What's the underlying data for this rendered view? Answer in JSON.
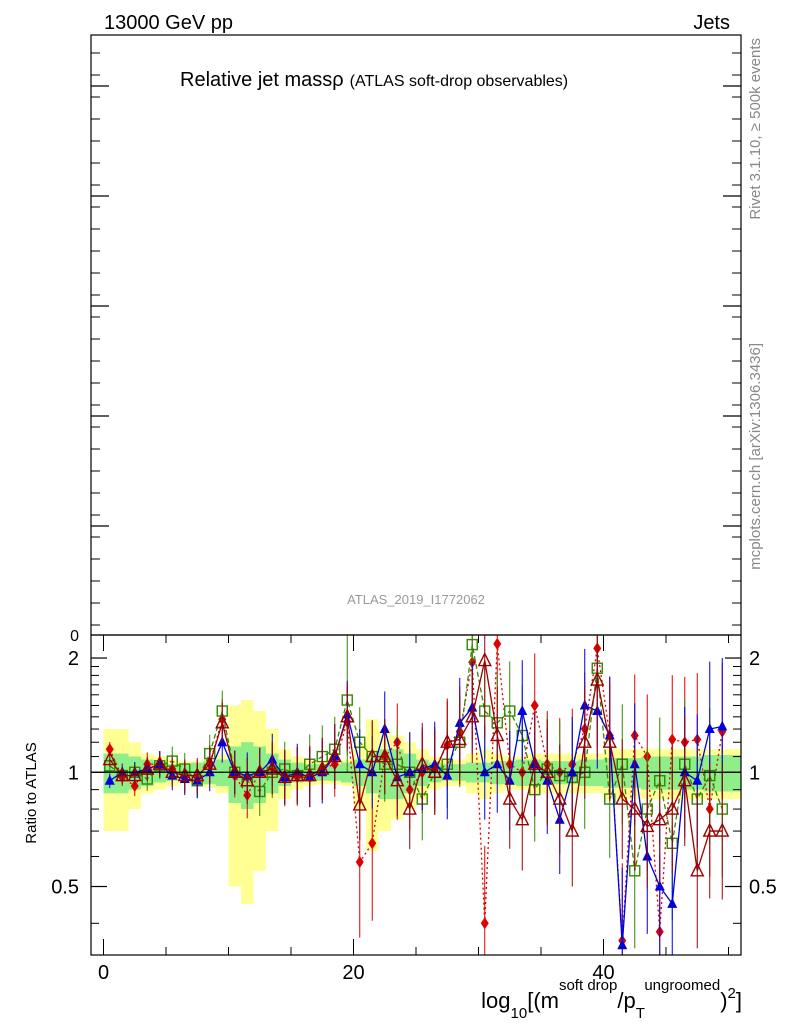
{
  "header": {
    "left_label": "13000 GeV pp",
    "right_label": "Jets"
  },
  "chart_data": {
    "type": "line",
    "title_main": "Relative jet mass",
    "title_symbol": "ρ",
    "title_sub": "(ATLAS soft-drop observables)",
    "analysis_id": "ATLAS_2019_I1772062",
    "side_label_top": "Rivet 3.1.10, ≥ 500k events",
    "side_label_bottom": "mcplots.cern.ch [arXiv:1306.3436]",
    "main_panel": {
      "ytick_zero": "0"
    },
    "ratio_panel": {
      "ylabel": "Ratio to ATLAS",
      "ylim": [
        0.33,
        2.3
      ],
      "yticks": [
        0.5,
        1,
        2
      ],
      "ytick_labels": [
        "0.5",
        "1",
        "2"
      ],
      "xlim": [
        -1,
        51
      ],
      "xticks": [
        0,
        20,
        40
      ],
      "xtick_labels": [
        "0",
        "20",
        "40"
      ],
      "xlabel": {
        "prefix": "log",
        "sub": "10",
        "open": "[(m",
        "sup_num": "soft drop",
        "mid": "/p",
        "sub_den": "T",
        "sup_den": "ungroomed",
        "close": ")",
        "power": "2",
        "end": "]"
      },
      "band_inner_half": [
        0.12,
        0.12,
        0.1,
        0.08,
        0.06,
        0.05,
        0.05,
        0.06,
        0.07,
        0.08,
        0.17,
        0.2,
        0.17,
        0.12,
        0.08,
        0.06,
        0.05,
        0.05,
        0.05,
        0.06,
        0.08,
        0.12,
        0.15,
        0.15,
        0.12,
        0.08,
        0.06,
        0.05,
        0.05,
        0.06,
        0.06,
        0.07,
        0.07,
        0.08,
        0.08,
        0.07,
        0.07,
        0.07,
        0.08,
        0.08,
        0.09,
        0.09,
        0.09,
        0.1,
        0.1,
        0.1,
        0.1,
        0.1,
        0.11,
        0.11,
        0.11
      ],
      "band_outer_half": [
        0.3,
        0.3,
        0.2,
        0.12,
        0.1,
        0.08,
        0.07,
        0.07,
        0.09,
        0.12,
        0.5,
        0.55,
        0.45,
        0.3,
        0.15,
        0.1,
        0.08,
        0.07,
        0.07,
        0.08,
        0.2,
        0.38,
        0.3,
        0.25,
        0.2,
        0.15,
        0.1,
        0.08,
        0.08,
        0.12,
        0.15,
        0.12,
        0.1,
        0.1,
        0.12,
        0.12,
        0.12,
        0.12,
        0.12,
        0.12,
        0.15,
        0.15,
        0.15,
        0.15,
        0.15,
        0.15,
        0.15,
        0.15,
        0.15,
        0.15,
        0.15
      ],
      "series": [
        {
          "name": "red-diamond",
          "color": "#e00000",
          "marker": "diamond",
          "line": "dotted",
          "x": [
            0.5,
            1.5,
            2.5,
            3.5,
            4.5,
            5.5,
            6.5,
            7.5,
            8.5,
            9.5,
            10.5,
            11.5,
            12.5,
            13.5,
            14.5,
            15.5,
            16.5,
            17.5,
            18.5,
            19.5,
            20.5,
            21.5,
            22.5,
            23.5,
            24.5,
            25.5,
            26.5,
            27.5,
            28.5,
            29.5,
            30.5,
            31.5,
            32.5,
            33.5,
            34.5,
            35.5,
            36.5,
            37.5,
            38.5,
            39.5,
            40.5,
            41.5,
            42.5,
            43.5,
            44.5,
            45.5,
            46.5,
            47.5,
            48.5,
            49.5
          ],
          "values": [
            1.15,
            0.97,
            0.92,
            1.05,
            1.05,
            1.02,
            0.97,
            0.97,
            1.05,
            1.38,
            0.98,
            0.87,
            1.0,
            1.03,
            0.96,
            0.97,
            0.97,
            1.02,
            1.05,
            1.36,
            0.58,
            0.65,
            1.1,
            1.2,
            0.9,
            1.0,
            1.02,
            1.18,
            1.28,
            1.95,
            0.4,
            2.18,
            1.05,
            1.0,
            1.5,
            1.05,
            1.0,
            1.05,
            1.3,
            2.12,
            1.25,
            0.36,
            1.25,
            1.1,
            0.38,
            1.22,
            1.2,
            1.22,
            0.8,
            1.28
          ]
        },
        {
          "name": "green-square",
          "color": "#338800",
          "marker": "square",
          "line": "dashed",
          "x": [
            0.5,
            1.5,
            2.5,
            3.5,
            4.5,
            5.5,
            6.5,
            7.5,
            8.5,
            9.5,
            10.5,
            11.5,
            12.5,
            13.5,
            14.5,
            15.5,
            16.5,
            17.5,
            18.5,
            19.5,
            20.5,
            21.5,
            22.5,
            23.5,
            24.5,
            25.5,
            26.5,
            27.5,
            28.5,
            29.5,
            30.5,
            31.5,
            32.5,
            33.5,
            34.5,
            35.5,
            36.5,
            37.5,
            38.5,
            39.5,
            40.5,
            41.5,
            42.5,
            43.5,
            44.5,
            45.5,
            46.5,
            47.5,
            48.5,
            49.5
          ],
          "values": [
            1.04,
            0.98,
            1.0,
            0.96,
            1.04,
            1.07,
            1.02,
            0.95,
            1.12,
            1.45,
            1.0,
            0.95,
            0.89,
            1.0,
            1.02,
            0.98,
            1.05,
            1.1,
            1.15,
            1.55,
            1.2,
            1.1,
            1.05,
            1.05,
            1.0,
            0.85,
            1.0,
            1.05,
            1.2,
            2.17,
            1.45,
            1.35,
            1.45,
            1.25,
            0.9,
            1.02,
            0.98,
            0.97,
            1.0,
            1.88,
            0.85,
            1.05,
            0.55,
            0.8,
            0.95,
            0.65,
            1.05,
            0.85,
            0.98,
            0.8
          ]
        },
        {
          "name": "blue-triangle",
          "color": "#0000dd",
          "marker": "triangle",
          "line": "solid",
          "x": [
            0.5,
            1.5,
            2.5,
            3.5,
            4.5,
            5.5,
            6.5,
            7.5,
            8.5,
            9.5,
            10.5,
            11.5,
            12.5,
            13.5,
            14.5,
            15.5,
            16.5,
            17.5,
            18.5,
            19.5,
            20.5,
            21.5,
            22.5,
            23.5,
            24.5,
            25.5,
            26.5,
            27.5,
            28.5,
            29.5,
            30.5,
            31.5,
            32.5,
            33.5,
            34.5,
            35.5,
            36.5,
            37.5,
            38.5,
            39.5,
            40.5,
            41.5,
            42.5,
            43.5,
            44.5,
            45.5,
            46.5,
            47.5,
            48.5,
            49.5
          ],
          "values": [
            0.95,
            1.0,
            1.0,
            1.02,
            1.05,
            0.98,
            0.96,
            0.95,
            1.0,
            1.2,
            1.0,
            0.98,
            1.0,
            1.08,
            0.97,
            1.0,
            0.97,
            1.0,
            1.1,
            1.42,
            1.05,
            1.0,
            1.3,
            0.97,
            1.0,
            1.02,
            1.05,
            0.98,
            1.35,
            1.48,
            1.0,
            1.05,
            0.95,
            1.45,
            1.05,
            0.95,
            0.75,
            1.0,
            1.5,
            1.45,
            1.25,
            0.35,
            1.05,
            0.6,
            0.5,
            0.45,
            1.0,
            0.95,
            1.3,
            1.32
          ]
        },
        {
          "name": "darkred-triangle-open",
          "color": "#990000",
          "marker": "triangle-open",
          "line": "solid",
          "x": [
            0.5,
            1.5,
            2.5,
            3.5,
            4.5,
            5.5,
            6.5,
            7.5,
            8.5,
            9.5,
            10.5,
            11.5,
            12.5,
            13.5,
            14.5,
            15.5,
            16.5,
            17.5,
            18.5,
            19.5,
            20.5,
            21.5,
            22.5,
            23.5,
            24.5,
            25.5,
            26.5,
            27.5,
            28.5,
            29.5,
            30.5,
            31.5,
            32.5,
            33.5,
            34.5,
            35.5,
            36.5,
            37.5,
            38.5,
            39.5,
            40.5,
            41.5,
            42.5,
            43.5,
            44.5,
            45.5,
            46.5,
            47.5,
            48.5,
            49.5
          ],
          "values": [
            1.08,
            0.98,
            0.98,
            1.02,
            1.05,
            1.0,
            0.98,
            0.98,
            1.05,
            1.35,
            1.0,
            0.95,
            1.0,
            1.02,
            0.97,
            0.98,
            0.98,
            1.02,
            1.1,
            1.4,
            0.82,
            1.1,
            1.1,
            0.95,
            0.8,
            1.05,
            1.0,
            1.2,
            1.22,
            1.4,
            1.97,
            1.25,
            0.85,
            0.75,
            1.05,
            1.0,
            0.85,
            0.7,
            1.2,
            1.75,
            1.2,
            0.85,
            0.8,
            0.72,
            0.75,
            0.8,
            0.95,
            0.55,
            0.7,
            0.7
          ]
        }
      ]
    }
  }
}
